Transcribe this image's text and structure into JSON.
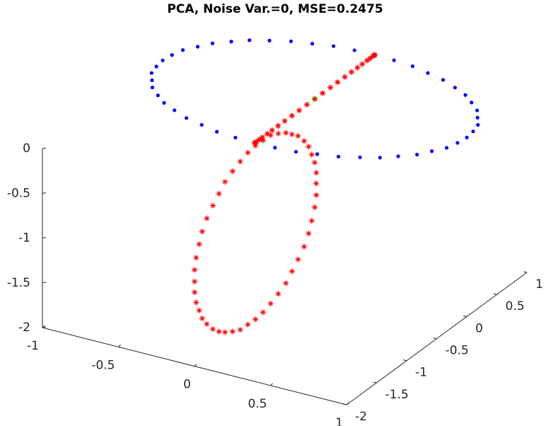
{
  "chart_data": {
    "type": "scatter3d",
    "title": "PCA, Noise Var.=0, MSE=0.2475",
    "xlim": [
      -1,
      1
    ],
    "xticks": [
      -1,
      -0.5,
      0,
      0.5,
      1
    ],
    "ylim": [
      -2,
      1
    ],
    "yticks": [
      -2,
      -1.5,
      -1,
      -0.5,
      0,
      0.5,
      1
    ],
    "zlim": [
      -2,
      0
    ],
    "zticks": [
      -2,
      -1.5,
      -1,
      -0.5,
      0
    ],
    "series": [
      {
        "color": "#0000ff",
        "marker": "dot",
        "x": [
          1,
          0.99,
          0.97,
          0.92,
          0.87,
          0.79,
          0.71,
          0.61,
          0.5,
          0.38,
          0.26,
          0.13,
          0,
          -0.13,
          -0.26,
          -0.38,
          -0.5,
          -0.61,
          -0.71,
          -0.79,
          -0.87,
          -0.92,
          -0.97,
          -0.99,
          -1,
          -0.99,
          -0.97,
          -0.92,
          -0.87,
          -0.79,
          -0.71,
          -0.61,
          -0.5,
          -0.38,
          -0.26,
          -0.13,
          0,
          0.13,
          0.26,
          0.38,
          0.5,
          0.61,
          0.71,
          0.79,
          0.87,
          0.92,
          0.97,
          0.99
        ],
        "y": [
          0,
          0.13,
          0.26,
          0.38,
          0.5,
          0.61,
          0.71,
          0.79,
          0.87,
          0.92,
          0.97,
          0.99,
          1,
          0.99,
          0.97,
          0.92,
          0.87,
          0.79,
          0.71,
          0.61,
          0.5,
          0.38,
          0.26,
          0.13,
          0,
          -0.13,
          -0.26,
          -0.38,
          -0.5,
          -0.61,
          -0.71,
          -0.79,
          -0.87,
          -0.92,
          -0.97,
          -0.99,
          -1,
          -0.99,
          -0.97,
          -0.92,
          -0.87,
          -0.79,
          -0.71,
          -0.61,
          -0.5,
          -0.38,
          -0.26,
          -0.13
        ],
        "z": [
          0,
          0,
          0,
          0,
          0,
          0,
          0,
          0,
          0,
          0,
          0,
          0,
          0,
          0,
          0,
          0,
          0,
          0,
          0,
          0,
          0,
          0,
          0,
          0,
          0,
          0,
          0,
          0,
          0,
          0,
          0,
          0,
          0,
          0,
          0,
          0,
          0,
          0,
          0,
          0,
          0,
          0,
          0,
          0,
          0,
          0,
          0,
          0
        ]
      },
      {
        "color": "#ff0000",
        "marker": "star",
        "x": [
          0,
          0,
          0,
          0,
          0,
          0,
          0,
          0,
          0,
          0,
          0,
          0,
          0,
          0,
          0,
          0,
          0,
          0,
          0,
          0,
          0,
          0,
          0,
          0,
          0,
          0,
          0,
          0,
          0,
          0,
          0,
          0,
          0,
          0,
          0,
          0,
          0,
          0,
          0,
          0,
          0,
          0,
          0,
          0,
          0,
          0,
          0,
          0
        ],
        "y": [
          0,
          0.13,
          0.26,
          0.38,
          0.5,
          0.61,
          0.71,
          0.79,
          0.87,
          0.92,
          0.97,
          0.99,
          1,
          0.99,
          0.97,
          0.92,
          0.87,
          0.79,
          0.71,
          0.61,
          0.5,
          0.38,
          0.26,
          0.13,
          0,
          -0.13,
          -0.26,
          -0.38,
          -0.5,
          -0.61,
          -0.71,
          -0.79,
          -0.87,
          -0.92,
          -0.97,
          -0.99,
          -1,
          -0.99,
          -0.97,
          -0.92,
          -0.87,
          -0.79,
          -0.71,
          -0.61,
          -0.5,
          -0.38,
          -0.26,
          -0.13
        ],
        "z": [
          0,
          0,
          0,
          0,
          0,
          0,
          0,
          0,
          0,
          0,
          0,
          0,
          0,
          0,
          0,
          0,
          0,
          0,
          0,
          0,
          0,
          0,
          0,
          0,
          0,
          0,
          0,
          0,
          0,
          0,
          0,
          0,
          0,
          0,
          0,
          0,
          0,
          0,
          0,
          0,
          0,
          0,
          0,
          0,
          0,
          0,
          0,
          0
        ]
      },
      {
        "color": "#66cc00",
        "marker": "circle",
        "x": [
          0
        ],
        "y": [
          0
        ],
        "z": [
          0
        ]
      },
      {
        "color": "#ff0000",
        "marker": "star",
        "x": [
          0.01,
          0.01,
          0,
          -0.02,
          -0.04,
          -0.07,
          -0.11,
          -0.15,
          -0.19,
          -0.24,
          -0.29,
          -0.34,
          -0.39,
          -0.44,
          -0.49,
          -0.54,
          -0.59,
          -0.63,
          -0.67,
          -0.71,
          -0.74,
          -0.76,
          -0.78,
          -0.79,
          -0.79,
          -0.79,
          -0.78,
          -0.76,
          -0.74,
          -0.71,
          -0.67,
          -0.63,
          -0.59,
          -0.54,
          -0.49,
          -0.44,
          -0.39,
          -0.34,
          -0.29,
          -0.24,
          -0.19,
          -0.15,
          -0.11,
          -0.07,
          -0.04,
          -0.02,
          0,
          0.01
        ],
        "y": [
          0,
          0,
          0,
          0,
          0,
          0,
          0,
          0,
          0,
          0,
          0,
          0,
          0,
          0,
          0,
          0,
          0,
          0,
          0,
          0,
          0,
          0,
          0,
          0,
          0,
          0,
          0,
          0,
          0,
          0,
          0,
          0,
          0,
          0,
          0,
          0,
          0,
          0,
          0,
          0,
          0,
          0,
          0,
          0,
          0,
          0,
          0,
          0
        ],
        "z": [
          -0.94,
          -0.82,
          -0.71,
          -0.63,
          -0.55,
          -0.5,
          -0.46,
          -0.46,
          -0.46,
          -0.49,
          -0.53,
          -0.61,
          -0.69,
          -0.79,
          -0.91,
          -1.04,
          -1.18,
          -1.33,
          -1.48,
          -1.64,
          -1.8,
          -1.95,
          -2.11,
          -2.25,
          -2.38,
          -2.5,
          -2.61,
          -2.69,
          -2.77,
          -2.82,
          -2.86,
          -2.87,
          -2.86,
          -2.83,
          -2.79,
          -2.71,
          -2.63,
          -2.53,
          -2.41,
          -2.28,
          -2.14,
          -1.99,
          -1.84,
          -1.68,
          -1.52,
          -1.37,
          -1.21,
          -1.07
        ]
      }
    ]
  }
}
